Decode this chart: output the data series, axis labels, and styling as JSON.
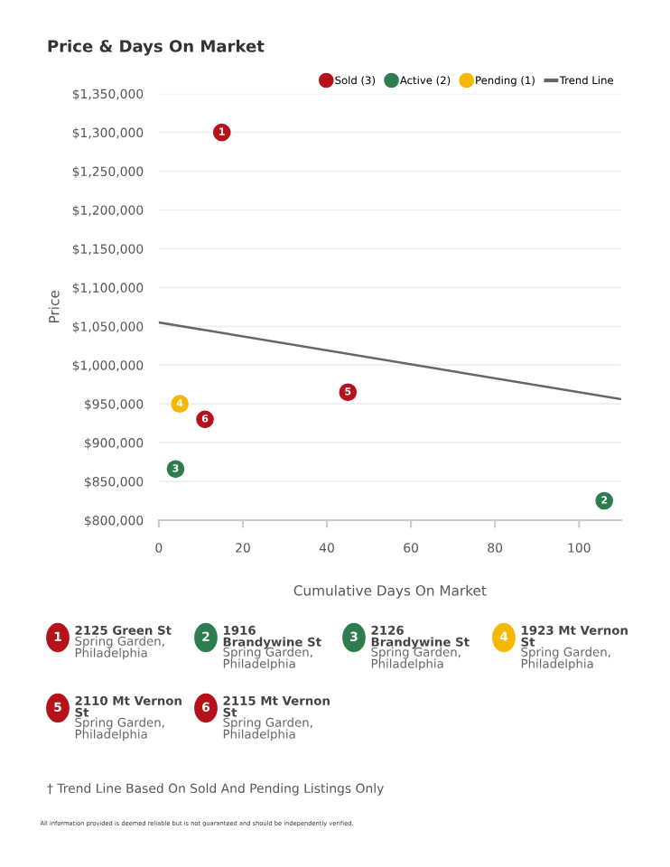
{
  "chart_data": {
    "type": "scatter",
    "title": "Price & Days On Market",
    "xlabel": "Cumulative Days On Market",
    "ylabel": "Price",
    "series": [
      {
        "name": "Sold (3)",
        "color": "#b5121b",
        "marker": "circle",
        "x": [
          15,
          45,
          11
        ],
        "values": [
          1300000,
          965000,
          930000
        ]
      },
      {
        "name": "Active (2)",
        "color": "#2e7d4f",
        "marker": "circle",
        "x": [
          106,
          4
        ],
        "values": [
          825000,
          866000
        ]
      },
      {
        "name": "Pending (1)",
        "color": "#f5b800",
        "marker": "circle",
        "x": [
          5
        ],
        "values": [
          950000
        ]
      },
      {
        "name": "Trend Line",
        "type": "line",
        "color": "#666666",
        "marker": "none",
        "x": [
          0,
          110
        ],
        "values": [
          1055000,
          956000
        ]
      }
    ],
    "xlim": [
      0,
      110
    ],
    "xticks": [
      0,
      20,
      40,
      60,
      80,
      100
    ],
    "ylim": [
      800000,
      1350000
    ],
    "yticks": [
      {
        "value": 800000,
        "label": "$800,000"
      },
      {
        "value": 850000,
        "label": "$850,000"
      },
      {
        "value": 900000,
        "label": "$900,000"
      },
      {
        "value": 950000,
        "label": "$950,000"
      },
      {
        "value": 1000000,
        "label": "$1,000,000"
      },
      {
        "value": 1050000,
        "label": "$1,050,000"
      },
      {
        "value": 1100000,
        "label": "$1,100,000"
      },
      {
        "value": 1150000,
        "label": "$1,150,000"
      },
      {
        "value": 1200000,
        "label": "$1,200,000"
      },
      {
        "value": 1250000,
        "label": "$1,250,000"
      },
      {
        "value": 1300000,
        "label": "$1,300,000"
      },
      {
        "value": 1350000,
        "label": "$1,350,000"
      }
    ],
    "grid": "y",
    "legend": "top right",
    "annotations": [
      {
        "text": "1",
        "x": 15,
        "y": 1300000
      },
      {
        "text": "5",
        "x": 45,
        "y": 965000
      },
      {
        "text": "6",
        "x": 11,
        "y": 930000
      },
      {
        "text": "2",
        "x": 106,
        "y": 825000
      },
      {
        "text": "3",
        "x": 4,
        "y": 866000
      },
      {
        "text": "4",
        "x": 5,
        "y": 950000
      },
      "1\n2125 Green St\nSpring Garden,\nPhiladelphia",
      "2\n1916\nBrandywine St\nSpring Garden,\nPhiladelphia",
      "3\n2126\nBrandywine St\nSpring Garden,\nPhiladelphia",
      "4\n1923 Mt Vernon\nSt\nSpring Garden,\nPhiladelphia",
      "5\n2110 Mt Vernon\nSt\nSpring Garden,\nPhiladelphia",
      "6\n2115 Mt Vernon\nSt\nSpring Garden,\nPhiladelphia",
      "† Trend Line Based On Sold And Pending Listings Only",
      "All information provided is deemed reliable but is not guaranteed and should be independently verified."
    ]
  }
}
